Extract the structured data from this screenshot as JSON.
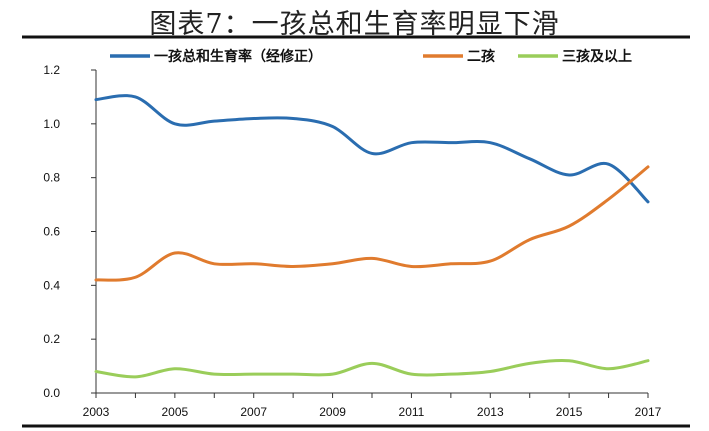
{
  "title": "图表7：一孩总和生育率明显下滑",
  "chart_data": {
    "type": "line",
    "x": [
      2003,
      2004,
      2005,
      2006,
      2007,
      2008,
      2009,
      2010,
      2011,
      2012,
      2013,
      2014,
      2015,
      2016,
      2017
    ],
    "xticks": [
      "2003",
      "2005",
      "2007",
      "2009",
      "2011",
      "2013",
      "2015",
      "2017"
    ],
    "yticks": [
      "0.0",
      "0.2",
      "0.4",
      "0.6",
      "0.8",
      "1.0",
      "1.2"
    ],
    "ylim": [
      0,
      1.2
    ],
    "xlim": [
      2003,
      2017
    ],
    "legend_position": "top",
    "grid": false,
    "series": [
      {
        "name": "一孩总和生育率（经修正）",
        "color": "#2a6db0",
        "values": [
          1.09,
          1.1,
          1.0,
          1.01,
          1.02,
          1.02,
          0.99,
          0.89,
          0.93,
          0.93,
          0.93,
          0.87,
          0.81,
          0.85,
          0.71
        ]
      },
      {
        "name": "二孩",
        "color": "#e07b2e",
        "values": [
          0.42,
          0.43,
          0.52,
          0.48,
          0.48,
          0.47,
          0.48,
          0.5,
          0.47,
          0.48,
          0.49,
          0.57,
          0.62,
          0.72,
          0.84
        ]
      },
      {
        "name": "三孩及以上",
        "color": "#9acd5a",
        "values": [
          0.08,
          0.06,
          0.09,
          0.07,
          0.07,
          0.07,
          0.07,
          0.11,
          0.07,
          0.07,
          0.08,
          0.11,
          0.12,
          0.09,
          0.12
        ]
      }
    ]
  }
}
